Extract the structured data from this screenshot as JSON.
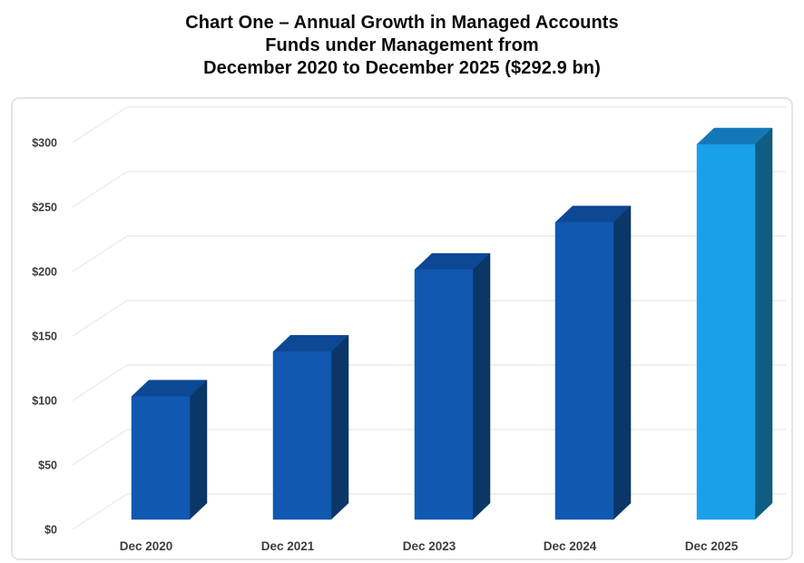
{
  "title": {
    "line1": "Chart One – Annual Growth in Managed Accounts",
    "line2": "Funds under Management from",
    "line3": "December 2020 to December 2025 ($292.9 bn)"
  },
  "chart_data": {
    "type": "bar",
    "style": "3d-column",
    "title": "Chart One – Annual Growth in Managed Accounts Funds under Management from December 2020 to December 2025 ($292.9 bn)",
    "categories": [
      "Dec 2020",
      "Dec 2021",
      "Dec 2023",
      "Dec 2024",
      "Dec 2025"
    ],
    "values": [
      96,
      131,
      195,
      232,
      292.9
    ],
    "highlight_index": 4,
    "annotated_total": "$292.9 bn",
    "xlabel": "",
    "ylabel": "",
    "ylim": [
      0,
      300
    ],
    "yticks": [
      {
        "value": 0,
        "label": "$0"
      },
      {
        "value": 50,
        "label": "$50"
      },
      {
        "value": 100,
        "label": "$100"
      },
      {
        "value": 150,
        "label": "$150"
      },
      {
        "value": 200,
        "label": "$200"
      },
      {
        "value": 250,
        "label": "$250"
      },
      {
        "value": 300,
        "label": "$300"
      }
    ],
    "grid": true,
    "legend": "none",
    "colors": {
      "bar_front": "#1058B0",
      "bar_top": "#0D4894",
      "bar_side": "#0A3668",
      "highlight_front": "#18A0E8",
      "highlight_top": "#1478B8",
      "highlight_side": "#115C82",
      "gridline": "#ebebee",
      "tick_text": "#3d3d3d",
      "panel_border": "#d9dce0",
      "panel_fill": "#ffffff",
      "title_text": "#0a0a0a"
    }
  }
}
